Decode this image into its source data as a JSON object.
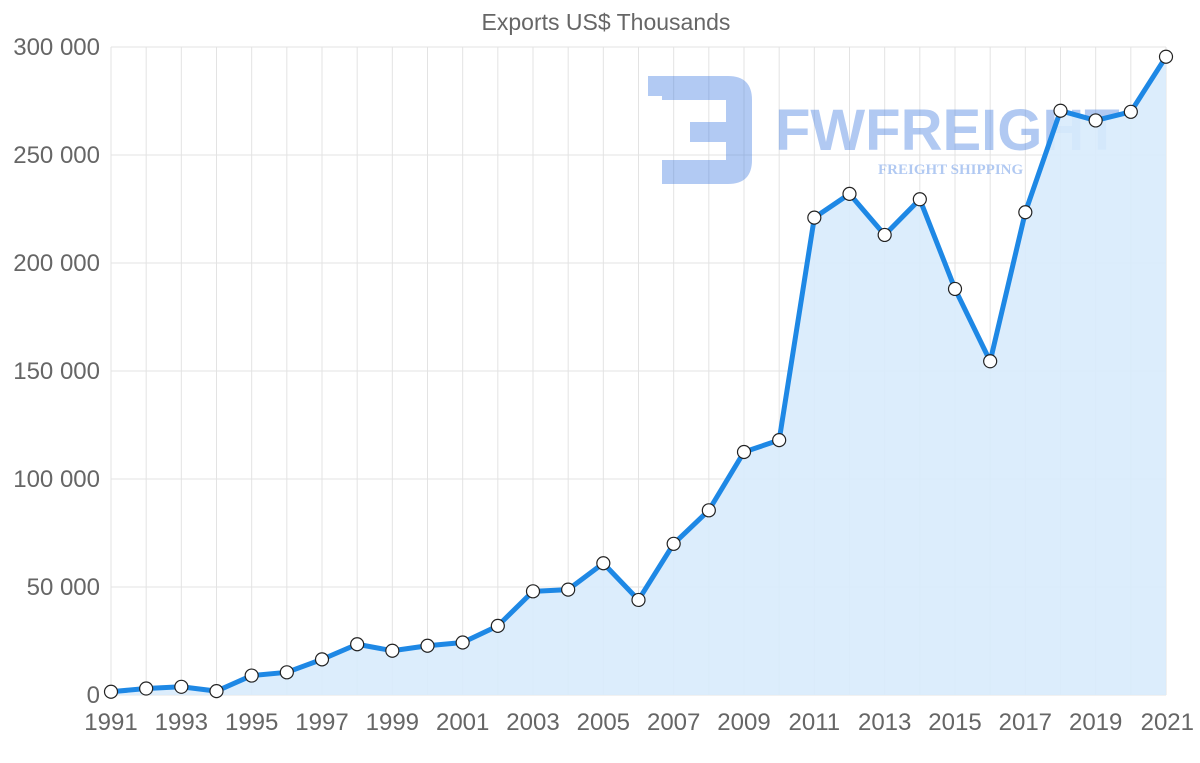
{
  "watermark": {
    "brand": "FWFREIGHT",
    "tagline": "FREIGHT SHIPPING",
    "color": "#3f7be0"
  },
  "chart_data": {
    "type": "area",
    "title": "Exports US$ Thousands",
    "xlabel": "",
    "ylabel": "",
    "ylim": [
      0,
      300000
    ],
    "yticks": [
      0,
      50000,
      100000,
      150000,
      200000,
      250000,
      300000
    ],
    "ytick_labels": [
      "0",
      "50 000",
      "100 000",
      "150 000",
      "200 000",
      "250 000",
      "300 000"
    ],
    "x": [
      1991,
      1992,
      1993,
      1994,
      1995,
      1996,
      1997,
      1998,
      1999,
      2000,
      2001,
      2002,
      2003,
      2004,
      2005,
      2006,
      2007,
      2008,
      2009,
      2010,
      2011,
      2012,
      2013,
      2014,
      2015,
      2016,
      2017,
      2018,
      2019,
      2020,
      2021
    ],
    "xtick_labels": [
      "1991",
      "1993",
      "1995",
      "1997",
      "1999",
      "2001",
      "2003",
      "2005",
      "2007",
      "2009",
      "2011",
      "2013",
      "2015",
      "2017",
      "2019",
      "2021"
    ],
    "series": [
      {
        "name": "Exports US$ Thousands",
        "color": "#1e88e5",
        "fill": "#d8ebfc",
        "values": [
          1500,
          3000,
          3800,
          1800,
          9000,
          10500,
          16500,
          23500,
          20500,
          22800,
          24300,
          32000,
          48000,
          48800,
          61000,
          44000,
          70000,
          85500,
          112500,
          118000,
          221000,
          232000,
          213000,
          229500,
          188000,
          154500,
          223500,
          270500,
          266000,
          270000,
          295500
        ]
      }
    ],
    "grid": true,
    "legend": "none"
  }
}
